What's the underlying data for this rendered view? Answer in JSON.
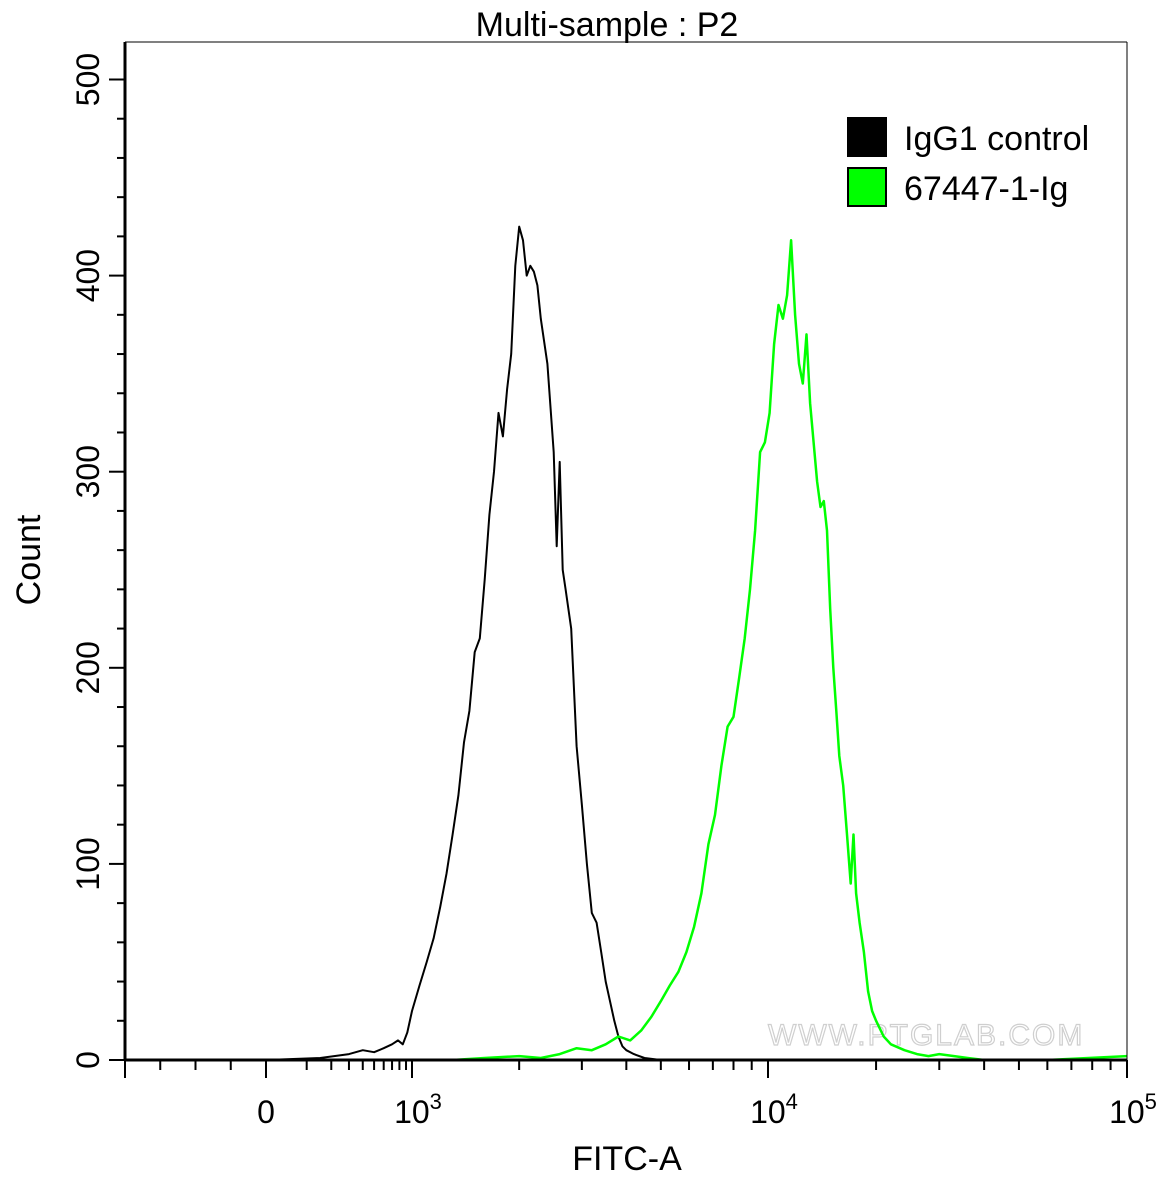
{
  "watermark": "WWW.PTGLAB.COM",
  "chart_data": {
    "type": "area",
    "title": "Multi-sample : P2",
    "xlabel": "FITC-A",
    "ylabel": "Count",
    "xscale": "biexponential",
    "xlim": [
      -400,
      100000
    ],
    "ylim": [
      0,
      500
    ],
    "x_ticks": [
      {
        "value": 0,
        "base": "0",
        "exp": ""
      },
      {
        "value": 1000,
        "base": "10",
        "exp": "3"
      },
      {
        "value": 10000,
        "base": "10",
        "exp": "4"
      },
      {
        "value": 100000,
        "base": "10",
        "exp": "5"
      }
    ],
    "y_ticks": [
      0,
      100,
      200,
      300,
      400,
      500
    ],
    "legend_position": "top-right",
    "grid": false,
    "series": [
      {
        "name": "IgG1 control",
        "color": "#000000",
        "legend_fill": "#000000",
        "points": [
          [
            0,
            0
          ],
          [
            150,
            1
          ],
          [
            300,
            3
          ],
          [
            400,
            5
          ],
          [
            500,
            4
          ],
          [
            600,
            6
          ],
          [
            700,
            8
          ],
          [
            780,
            10
          ],
          [
            850,
            8
          ],
          [
            920,
            14
          ],
          [
            1000,
            25
          ],
          [
            1050,
            38
          ],
          [
            1100,
            50
          ],
          [
            1150,
            62
          ],
          [
            1200,
            78
          ],
          [
            1250,
            95
          ],
          [
            1300,
            115
          ],
          [
            1350,
            135
          ],
          [
            1400,
            162
          ],
          [
            1450,
            178
          ],
          [
            1500,
            208
          ],
          [
            1550,
            215
          ],
          [
            1600,
            245
          ],
          [
            1650,
            278
          ],
          [
            1700,
            300
          ],
          [
            1750,
            330
          ],
          [
            1800,
            318
          ],
          [
            1850,
            342
          ],
          [
            1900,
            360
          ],
          [
            1950,
            405
          ],
          [
            2000,
            425
          ],
          [
            2050,
            418
          ],
          [
            2100,
            400
          ],
          [
            2150,
            405
          ],
          [
            2200,
            402
          ],
          [
            2250,
            395
          ],
          [
            2300,
            378
          ],
          [
            2400,
            355
          ],
          [
            2500,
            310
          ],
          [
            2550,
            262
          ],
          [
            2600,
            305
          ],
          [
            2650,
            250
          ],
          [
            2700,
            240
          ],
          [
            2800,
            220
          ],
          [
            2900,
            160
          ],
          [
            3000,
            130
          ],
          [
            3100,
            100
          ],
          [
            3200,
            75
          ],
          [
            3300,
            70
          ],
          [
            3400,
            55
          ],
          [
            3500,
            40
          ],
          [
            3600,
            30
          ],
          [
            3700,
            20
          ],
          [
            3800,
            12
          ],
          [
            3900,
            7
          ],
          [
            4000,
            5
          ],
          [
            4200,
            3
          ],
          [
            4500,
            1
          ],
          [
            5000,
            0
          ]
        ]
      },
      {
        "name": "67447-1-Ig",
        "color": "#00ff00",
        "legend_fill": "#00ff00",
        "points": [
          [
            1300,
            0
          ],
          [
            1600,
            1
          ],
          [
            2000,
            2
          ],
          [
            2300,
            1
          ],
          [
            2600,
            3
          ],
          [
            2900,
            6
          ],
          [
            3200,
            5
          ],
          [
            3500,
            8
          ],
          [
            3800,
            12
          ],
          [
            4100,
            10
          ],
          [
            4400,
            15
          ],
          [
            4700,
            22
          ],
          [
            5000,
            30
          ],
          [
            5300,
            38
          ],
          [
            5600,
            45
          ],
          [
            5900,
            55
          ],
          [
            6200,
            68
          ],
          [
            6500,
            85
          ],
          [
            6800,
            110
          ],
          [
            7100,
            125
          ],
          [
            7400,
            150
          ],
          [
            7700,
            170
          ],
          [
            8000,
            175
          ],
          [
            8300,
            195
          ],
          [
            8600,
            215
          ],
          [
            8900,
            240
          ],
          [
            9200,
            270
          ],
          [
            9500,
            310
          ],
          [
            9800,
            315
          ],
          [
            10100,
            330
          ],
          [
            10400,
            365
          ],
          [
            10700,
            385
          ],
          [
            11000,
            378
          ],
          [
            11300,
            390
          ],
          [
            11600,
            418
          ],
          [
            11900,
            380
          ],
          [
            12200,
            355
          ],
          [
            12500,
            345
          ],
          [
            12800,
            370
          ],
          [
            13100,
            335
          ],
          [
            13400,
            315
          ],
          [
            13700,
            295
          ],
          [
            14000,
            282
          ],
          [
            14300,
            285
          ],
          [
            14600,
            270
          ],
          [
            14900,
            230
          ],
          [
            15200,
            200
          ],
          [
            15500,
            178
          ],
          [
            15800,
            155
          ],
          [
            16200,
            140
          ],
          [
            16600,
            115
          ],
          [
            17000,
            90
          ],
          [
            17300,
            115
          ],
          [
            17600,
            85
          ],
          [
            18000,
            70
          ],
          [
            18500,
            55
          ],
          [
            19000,
            35
          ],
          [
            19500,
            25
          ],
          [
            20000,
            20
          ],
          [
            21000,
            12
          ],
          [
            22000,
            8
          ],
          [
            24000,
            5
          ],
          [
            26000,
            3
          ],
          [
            28000,
            2
          ],
          [
            30000,
            3
          ],
          [
            33000,
            2
          ],
          [
            36000,
            1
          ],
          [
            40000,
            0
          ],
          [
            60000,
            0
          ],
          [
            100000,
            2
          ]
        ]
      }
    ]
  }
}
